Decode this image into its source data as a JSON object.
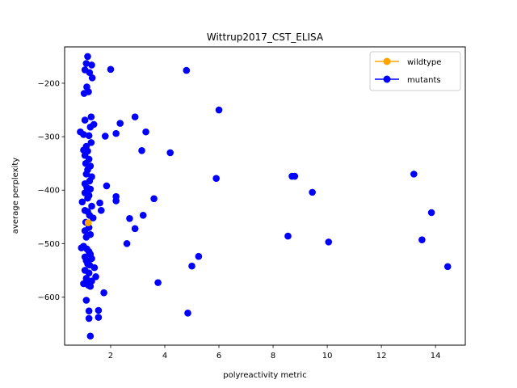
{
  "chart_data": {
    "type": "scatter",
    "title": "Wittrup2017_CST_ELISA",
    "xlabel": "polyreactivity metric",
    "ylabel": "average perplexity",
    "xlim": [
      0.3,
      15.1
    ],
    "ylim": [
      -690,
      -132
    ],
    "xticks": [
      2,
      4,
      6,
      8,
      10,
      12,
      14
    ],
    "yticks": [
      -600,
      -500,
      -400,
      -300,
      -200
    ],
    "xtick_labels": [
      "2",
      "4",
      "6",
      "8",
      "10",
      "12",
      "14"
    ],
    "ytick_labels": [
      "−600",
      "−500",
      "−400",
      "−300",
      "−200"
    ],
    "grid": false,
    "legend_position": "top-right",
    "series": [
      {
        "name": "wildtype",
        "color": "#ffa500",
        "points": [
          [
            1.17,
            -461
          ]
        ]
      },
      {
        "name": "mutants",
        "color": "#0000ff",
        "points": [
          [
            1.15,
            -150
          ],
          [
            1.1,
            -163
          ],
          [
            1.3,
            -166
          ],
          [
            1.05,
            -175
          ],
          [
            1.22,
            -180
          ],
          [
            1.32,
            -190
          ],
          [
            2.0,
            -174
          ],
          [
            4.8,
            -176
          ],
          [
            1.12,
            -207
          ],
          [
            1.18,
            -216
          ],
          [
            1.02,
            -219
          ],
          [
            6.0,
            -250
          ],
          [
            1.28,
            -263
          ],
          [
            1.05,
            -269
          ],
          [
            2.9,
            -263
          ],
          [
            1.38,
            -277
          ],
          [
            1.25,
            -282
          ],
          [
            2.35,
            -275
          ],
          [
            0.88,
            -291
          ],
          [
            1.0,
            -296
          ],
          [
            1.2,
            -298
          ],
          [
            1.8,
            -299
          ],
          [
            2.2,
            -294
          ],
          [
            3.3,
            -291
          ],
          [
            1.28,
            -311
          ],
          [
            1.1,
            -318
          ],
          [
            1.0,
            -325
          ],
          [
            1.15,
            -327
          ],
          [
            3.15,
            -326
          ],
          [
            4.2,
            -330
          ],
          [
            1.05,
            -335
          ],
          [
            1.2,
            -342
          ],
          [
            1.08,
            -350
          ],
          [
            1.25,
            -355
          ],
          [
            1.15,
            -362
          ],
          [
            1.1,
            -370
          ],
          [
            1.3,
            -375
          ],
          [
            1.22,
            -383
          ],
          [
            1.05,
            -388
          ],
          [
            1.12,
            -395
          ],
          [
            1.25,
            -398
          ],
          [
            1.85,
            -392
          ],
          [
            1.05,
            -405
          ],
          [
            1.2,
            -410
          ],
          [
            1.15,
            -415
          ],
          [
            2.2,
            -412
          ],
          [
            2.2,
            -420
          ],
          [
            3.6,
            -416
          ],
          [
            0.95,
            -422
          ],
          [
            1.6,
            -424
          ],
          [
            1.3,
            -430
          ],
          [
            1.05,
            -438
          ],
          [
            1.15,
            -440
          ],
          [
            1.65,
            -438
          ],
          [
            1.22,
            -447
          ],
          [
            1.35,
            -452
          ],
          [
            1.08,
            -460
          ],
          [
            2.7,
            -453
          ],
          [
            3.2,
            -447
          ],
          [
            1.2,
            -470
          ],
          [
            1.05,
            -476
          ],
          [
            2.9,
            -472
          ],
          [
            1.25,
            -483
          ],
          [
            1.1,
            -488
          ],
          [
            2.6,
            -500
          ],
          [
            5.9,
            -378
          ],
          [
            8.7,
            -374
          ],
          [
            8.8,
            -374
          ],
          [
            9.45,
            -404
          ],
          [
            1.0,
            -505
          ],
          [
            0.92,
            -508
          ],
          [
            1.12,
            -510
          ],
          [
            1.2,
            -515
          ],
          [
            1.25,
            -520
          ],
          [
            1.05,
            -525
          ],
          [
            1.3,
            -528
          ],
          [
            1.1,
            -532
          ],
          [
            1.15,
            -538
          ],
          [
            1.22,
            -540
          ],
          [
            1.4,
            -545
          ],
          [
            1.05,
            -550
          ],
          [
            1.2,
            -555
          ],
          [
            1.45,
            -562
          ],
          [
            1.1,
            -565
          ],
          [
            1.3,
            -570
          ],
          [
            1.0,
            -575
          ],
          [
            1.25,
            -580
          ],
          [
            1.18,
            -578
          ],
          [
            1.15,
            -572
          ],
          [
            5.25,
            -524
          ],
          [
            5.0,
            -542
          ],
          [
            3.75,
            -573
          ],
          [
            1.75,
            -592
          ],
          [
            1.1,
            -606
          ],
          [
            1.55,
            -625
          ],
          [
            1.2,
            -626
          ],
          [
            1.55,
            -638
          ],
          [
            1.2,
            -640
          ],
          [
            4.85,
            -630
          ],
          [
            1.25,
            -673
          ],
          [
            8.55,
            -486
          ],
          [
            10.05,
            -497
          ],
          [
            13.2,
            -370
          ],
          [
            13.85,
            -442
          ],
          [
            13.5,
            -493
          ],
          [
            14.45,
            -543
          ]
        ]
      }
    ]
  }
}
